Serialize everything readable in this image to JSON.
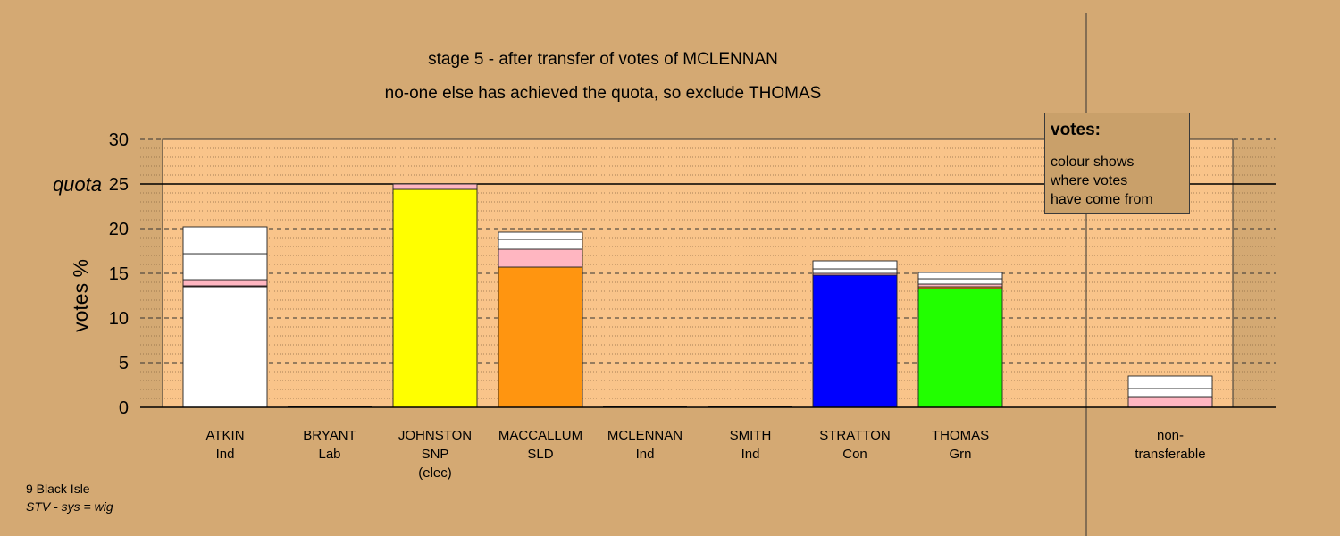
{
  "colors": {
    "background": "#d4a973",
    "plot_area": "#f9c48a",
    "ind": "#ffffff",
    "snp": "#ffff00",
    "sld": "#ff9510",
    "con": "#0000ff",
    "grn": "#22ff00",
    "lab": "#ff0000",
    "pink": "#ffb6c1"
  },
  "legend": {
    "title": "votes:",
    "line1": "colour shows",
    "line2": "where votes",
    "line3": "have come from"
  },
  "footer": {
    "constituency": "9 Black Isle",
    "system": "STV - sys = wig"
  },
  "chart_data": {
    "type": "bar",
    "stacked": true,
    "title": "stage 5 - after transfer of votes of MCLENNAN",
    "subtitle": "no-one else has achieved the quota, so exclude THOMAS",
    "ylabel": "votes %",
    "ylim": [
      0,
      30
    ],
    "yticks": [
      0,
      5,
      10,
      15,
      20,
      25,
      30
    ],
    "quota": 25,
    "quota_label": "quota",
    "grid": true,
    "categories": [
      {
        "name": "ATKIN",
        "party": "Ind",
        "note": ""
      },
      {
        "name": "BRYANT",
        "party": "Lab",
        "note": ""
      },
      {
        "name": "JOHNSTON",
        "party": "SNP",
        "note": "(elec)"
      },
      {
        "name": "MACCALLUM",
        "party": "SLD",
        "note": ""
      },
      {
        "name": "MCLENNAN",
        "party": "Ind",
        "note": ""
      },
      {
        "name": "SMITH",
        "party": "Ind",
        "note": ""
      },
      {
        "name": "STRATTON",
        "party": "Con",
        "note": ""
      },
      {
        "name": "THOMAS",
        "party": "Grn",
        "note": ""
      }
    ],
    "extra_category": {
      "line1": "non-",
      "line2": "transferable"
    },
    "bars": [
      {
        "segments": [
          {
            "value": 13.5,
            "color": "#ffffff"
          },
          {
            "value": 0.1,
            "color": "#ff0000"
          },
          {
            "value": 0.7,
            "color": "#ffb6c1"
          },
          {
            "value": 2.9,
            "color": "#ffffff"
          },
          {
            "value": 3.0,
            "color": "#ffffff"
          }
        ]
      },
      {
        "segments": []
      },
      {
        "segments": [
          {
            "value": 24.4,
            "color": "#ffff00"
          },
          {
            "value": 0.6,
            "color": "#ffb6c1"
          }
        ]
      },
      {
        "segments": [
          {
            "value": 15.7,
            "color": "#ff9510"
          },
          {
            "value": 2.0,
            "color": "#ffb6c1"
          },
          {
            "value": 1.1,
            "color": "#ffffff"
          },
          {
            "value": 0.8,
            "color": "#ffffff"
          }
        ]
      },
      {
        "segments": []
      },
      {
        "segments": []
      },
      {
        "segments": [
          {
            "value": 14.8,
            "color": "#0000ff"
          },
          {
            "value": 0.2,
            "color": "#ffb6c1"
          },
          {
            "value": 0.5,
            "color": "#ffffff"
          },
          {
            "value": 0.9,
            "color": "#ffffff"
          }
        ]
      },
      {
        "segments": [
          {
            "value": 13.3,
            "color": "#22ff00"
          },
          {
            "value": 0.2,
            "color": "#ff9510"
          },
          {
            "value": 0.3,
            "color": "#ffb6c1"
          },
          {
            "value": 0.6,
            "color": "#ffffff"
          },
          {
            "value": 0.7,
            "color": "#ffffff"
          }
        ]
      },
      {
        "segments": [
          {
            "value": 1.2,
            "color": "#ffb6c1"
          },
          {
            "value": 0.9,
            "color": "#ffffff"
          },
          {
            "value": 1.4,
            "color": "#ffffff"
          }
        ]
      }
    ]
  }
}
